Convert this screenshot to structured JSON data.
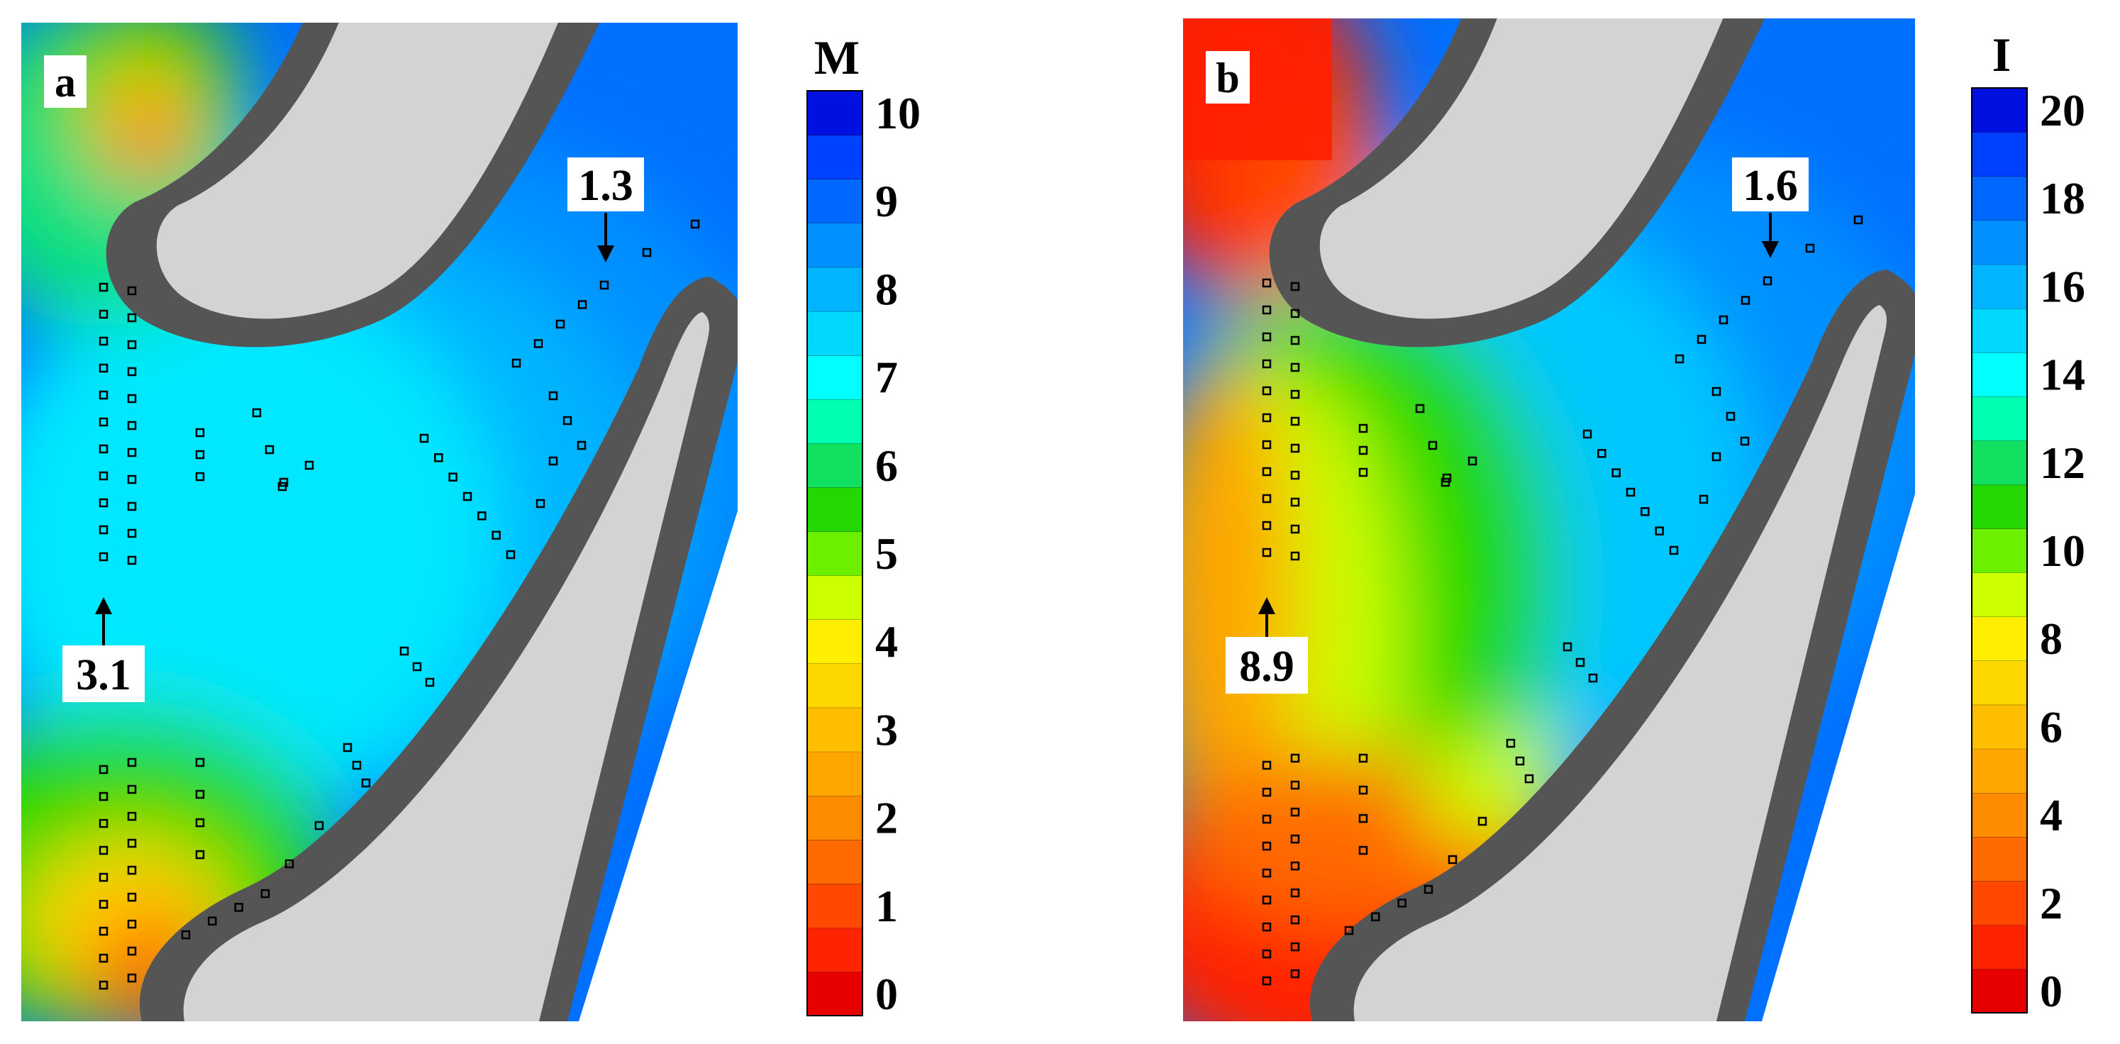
{
  "panels": [
    {
      "id": "a",
      "label": "a",
      "colorbar": {
        "title": "M",
        "min": 0,
        "max": 10,
        "levels": 20,
        "ticks": [
          "0",
          "1",
          "2",
          "3",
          "4",
          "5",
          "6",
          "7",
          "8",
          "9",
          "10"
        ]
      },
      "annotations": [
        {
          "text": "1.3",
          "points_to": "narrow passage between blades (upper right)"
        },
        {
          "text": "3.1",
          "points_to": "left probe column"
        }
      ]
    },
    {
      "id": "b",
      "label": "b",
      "colorbar": {
        "title": "I",
        "min": 0,
        "max": 20,
        "levels": 20,
        "ticks": [
          "0",
          "2",
          "4",
          "6",
          "8",
          "10",
          "12",
          "14",
          "16",
          "18",
          "20"
        ]
      },
      "annotations": [
        {
          "text": "1.6",
          "points_to": "narrow passage between blades (upper right)"
        },
        {
          "text": "8.9",
          "points_to": "left probe column"
        }
      ]
    }
  ],
  "colors": {
    "scale": [
      "#e60000",
      "#ff2400",
      "#ff4800",
      "#ff6a00",
      "#ff8c00",
      "#ffa500",
      "#ffbf00",
      "#ffd700",
      "#ffee00",
      "#ccff00",
      "#6cf000",
      "#22d800",
      "#11e060",
      "#00ffb0",
      "#00ffff",
      "#00d8ff",
      "#00b4ff",
      "#0090ff",
      "#0068ff",
      "#0040ff",
      "#0010e0"
    ],
    "blade_outline": "#555555",
    "blade_fill": "#d3d3d3"
  }
}
